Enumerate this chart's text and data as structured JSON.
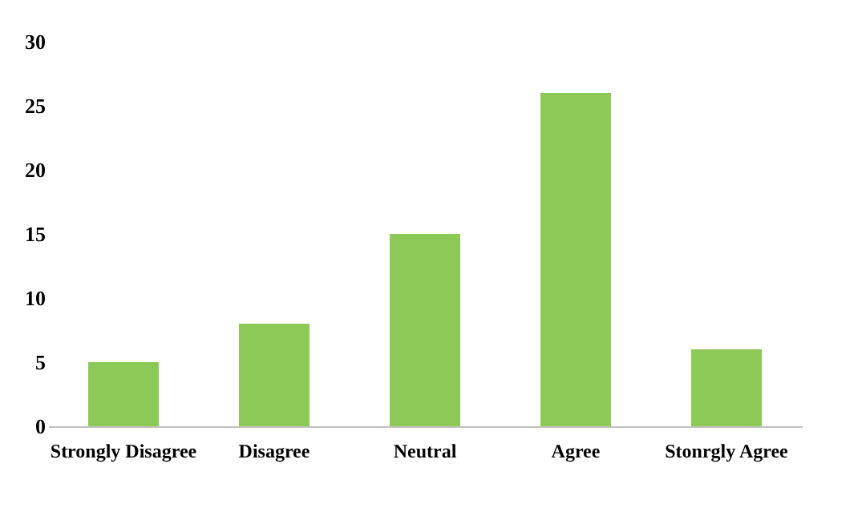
{
  "chart_data": {
    "type": "bar",
    "categories": [
      "Strongly Disagree",
      "Disagree",
      "Neutral",
      "Agree",
      "Stonrgly Agree"
    ],
    "values": [
      5,
      8,
      15,
      26,
      6
    ],
    "color": "#8cc957",
    "ylim": [
      0,
      30
    ],
    "yticks": [
      0,
      5,
      10,
      15,
      20,
      25,
      30
    ],
    "grid": false
  }
}
